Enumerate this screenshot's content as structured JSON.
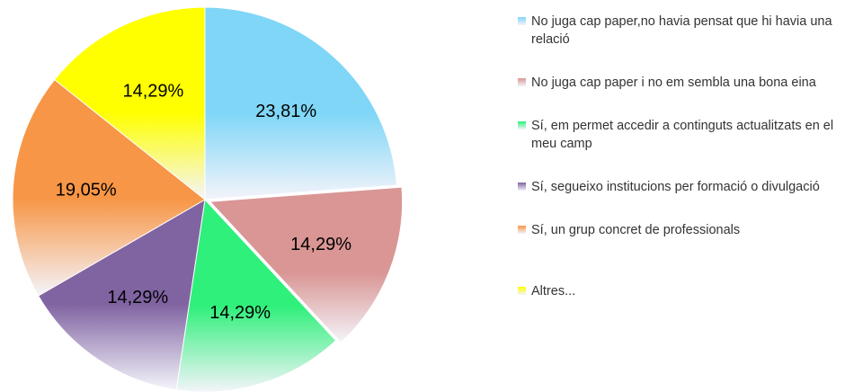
{
  "chart_data": {
    "type": "pie",
    "categories": [
      "No juga cap paper,no havia pensat que hi havia una relació",
      "No juga cap paper i no em sembla una bona eina",
      "Sí, em permet accedir a continguts actualitzats en el meu camp",
      "Sí, segueixo institucions per formació o divulgació",
      "Sí, un grup concret de professionals",
      "Altres..."
    ],
    "values": [
      23.81,
      14.29,
      14.29,
      14.29,
      19.05,
      14.29
    ],
    "value_labels": [
      "23,81%",
      "14,29%",
      "14,29%",
      "14,29%",
      "19,05%",
      "14,29%"
    ],
    "colors": [
      "#7fd6f7",
      "#d99694",
      "#2ef07a",
      "#8064a2",
      "#f79646",
      "#ffff00"
    ]
  }
}
